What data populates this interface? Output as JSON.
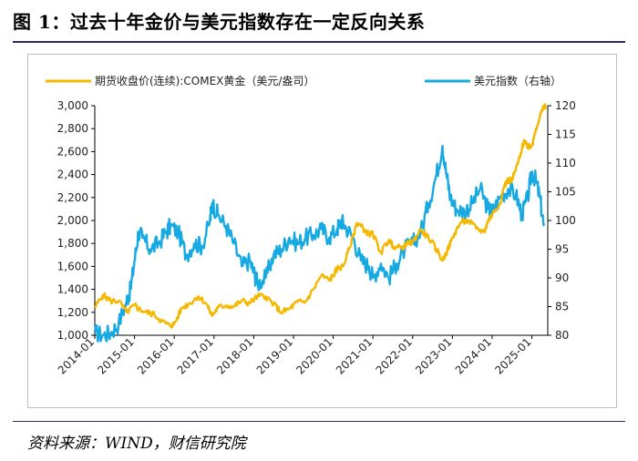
{
  "figure": {
    "title": "图 1：过去十年金价与美元指数存在一定反向关系",
    "source": "资料来源：WIND，财信研究院"
  },
  "colors": {
    "gold": "#F5B800",
    "usd": "#17A9E1",
    "axis": "#000000",
    "frame": "#BFBFBF"
  },
  "chart_data": {
    "type": "line",
    "title": "",
    "legend": "top",
    "x_axis": {
      "labels": [
        "2014-01",
        "2015-01",
        "2016-01",
        "2017-01",
        "2018-01",
        "2019-01",
        "2020-01",
        "2021-01",
        "2022-01",
        "2023-01",
        "2024-01",
        "2025-01"
      ],
      "range": [
        2014.0,
        2025.4
      ]
    },
    "y_left": {
      "min": 1000,
      "max": 3000,
      "step": 200,
      "tick_labels": [
        "1,000",
        "1,200",
        "1,400",
        "1,600",
        "1,800",
        "2,000",
        "2,200",
        "2,400",
        "2,600",
        "2,800",
        "3,000"
      ]
    },
    "y_right": {
      "min": 80,
      "max": 120,
      "step": 5,
      "tick_labels": [
        "80",
        "85",
        "90",
        "95",
        "100",
        "105",
        "110",
        "115",
        "120"
      ]
    },
    "series": [
      {
        "name": "期货收盘价(连续):COMEX黄金（美元/盎司）",
        "axis": "left",
        "color": "#F5B800",
        "x": [
          2014.0,
          2014.2,
          2014.4,
          2014.6,
          2014.8,
          2015.0,
          2015.1,
          2015.3,
          2015.5,
          2015.7,
          2015.9,
          2016.0,
          2016.2,
          2016.4,
          2016.6,
          2016.8,
          2016.95,
          2017.1,
          2017.3,
          2017.5,
          2017.7,
          2017.9,
          2018.1,
          2018.3,
          2018.5,
          2018.7,
          2018.9,
          2019.1,
          2019.3,
          2019.5,
          2019.7,
          2019.9,
          2020.0,
          2020.1,
          2020.25,
          2020.4,
          2020.6,
          2020.7,
          2020.9,
          2021.0,
          2021.2,
          2021.4,
          2021.5,
          2021.7,
          2021.9,
          2022.0,
          2022.2,
          2022.4,
          2022.6,
          2022.75,
          2022.9,
          2023.0,
          2023.2,
          2023.4,
          2023.6,
          2023.8,
          2023.9,
          2024.0,
          2024.2,
          2024.3,
          2024.4,
          2024.5,
          2024.6,
          2024.7,
          2024.8,
          2024.9,
          2025.0,
          2025.1,
          2025.2,
          2025.3,
          2025.35
        ],
        "y": [
          1240,
          1350,
          1300,
          1300,
          1200,
          1260,
          1230,
          1200,
          1180,
          1120,
          1080,
          1100,
          1240,
          1280,
          1340,
          1280,
          1170,
          1240,
          1260,
          1250,
          1300,
          1280,
          1340,
          1340,
          1270,
          1200,
          1230,
          1290,
          1290,
          1400,
          1520,
          1480,
          1520,
          1580,
          1600,
          1750,
          1980,
          1950,
          1880,
          1880,
          1720,
          1830,
          1780,
          1760,
          1800,
          1810,
          1920,
          1850,
          1750,
          1650,
          1760,
          1850,
          1980,
          2000,
          1930,
          1900,
          2000,
          2050,
          2150,
          2300,
          2350,
          2350,
          2450,
          2550,
          2700,
          2650,
          2650,
          2800,
          2900,
          2990,
          3000
        ]
      },
      {
        "name": "美元指数（右轴）",
        "axis": "right",
        "color": "#17A9E1",
        "x": [
          2014.0,
          2014.2,
          2014.4,
          2014.6,
          2014.8,
          2014.9,
          2015.0,
          2015.1,
          2015.2,
          2015.4,
          2015.6,
          2015.8,
          2015.9,
          2016.1,
          2016.3,
          2016.5,
          2016.7,
          2016.9,
          2016.95,
          2017.1,
          2017.3,
          2017.5,
          2017.7,
          2017.9,
          2018.0,
          2018.1,
          2018.3,
          2018.5,
          2018.7,
          2018.9,
          2019.1,
          2019.3,
          2019.5,
          2019.7,
          2019.9,
          2020.1,
          2020.2,
          2020.3,
          2020.5,
          2020.7,
          2020.9,
          2021.0,
          2021.2,
          2021.4,
          2021.6,
          2021.8,
          2022.0,
          2022.2,
          2022.4,
          2022.6,
          2022.75,
          2022.85,
          2022.95,
          2023.1,
          2023.3,
          2023.5,
          2023.7,
          2023.9,
          2024.0,
          2024.2,
          2024.4,
          2024.6,
          2024.75,
          2024.9,
          2025.0,
          2025.1,
          2025.2,
          2025.3
        ],
        "y": [
          80.5,
          80.0,
          80.4,
          82.0,
          86.0,
          88.0,
          93.0,
          98.0,
          97.0,
          95.0,
          96.0,
          98.0,
          99.0,
          98.0,
          94.0,
          96.0,
          95.5,
          100.0,
          103.0,
          101.0,
          99.0,
          96.0,
          92.0,
          93.0,
          91.0,
          89.0,
          90.0,
          94.0,
          95.0,
          97.0,
          96.0,
          97.0,
          97.5,
          98.5,
          97.0,
          98.5,
          100.0,
          99.0,
          97.0,
          93.0,
          92.0,
          90.0,
          92.5,
          90.0,
          92.5,
          95.0,
          96.0,
          98.0,
          103.0,
          108.0,
          113.0,
          108.0,
          104.0,
          102.0,
          101.5,
          103.0,
          105.5,
          102.0,
          101.5,
          104.0,
          105.5,
          104.5,
          101.0,
          104.0,
          108.5,
          107.0,
          104.0,
          99.0
        ]
      }
    ]
  }
}
